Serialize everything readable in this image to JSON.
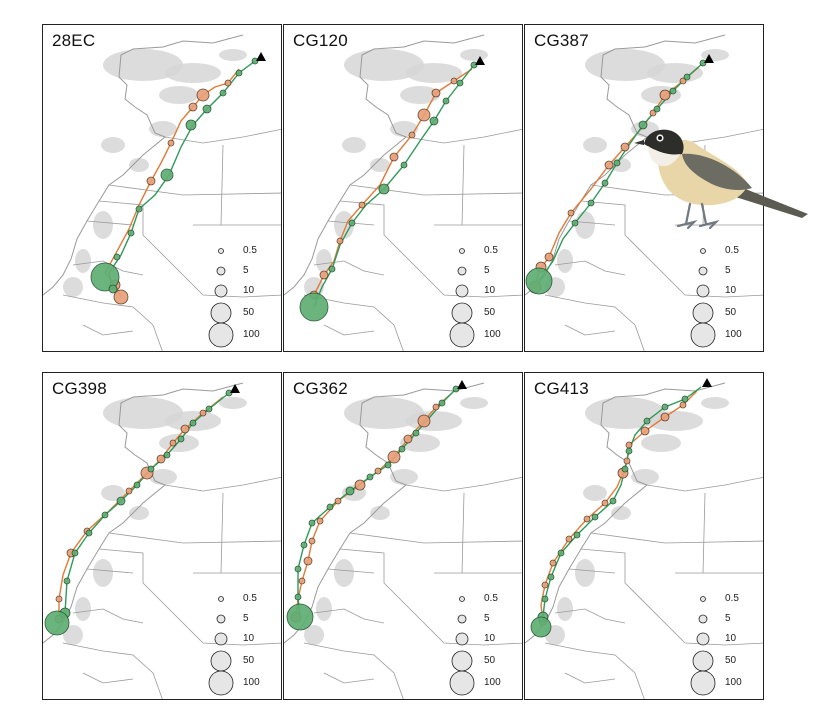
{
  "colors": {
    "spring_route": "#e07b39",
    "autumn_route": "#2e9a5a",
    "spring_fill": "#e8a07a",
    "autumn_fill": "#5fae74",
    "border": "#9a9a9a",
    "terrain": "#d6d6d6",
    "legend_fill": "#e6e6e6",
    "breeding_marker": "#000000"
  },
  "legend": {
    "labels": [
      "0.5",
      "5",
      "10",
      "50",
      "100"
    ]
  },
  "panels": [
    {
      "id": "28EC",
      "orange": [
        [
          196,
          44
        ],
        [
          185,
          58
        ],
        [
          172,
          62
        ],
        [
          160,
          70
        ],
        [
          150,
          82
        ],
        [
          138,
          96
        ],
        [
          128,
          118
        ],
        [
          118,
          138
        ],
        [
          108,
          156
        ],
        [
          96,
          180
        ],
        [
          86,
          204
        ],
        [
          72,
          230
        ],
        [
          62,
          248
        ],
        [
          72,
          260
        ],
        [
          78,
          272
        ]
      ],
      "green": [
        [
          212,
          36
        ],
        [
          196,
          48
        ],
        [
          180,
          68
        ],
        [
          164,
          84
        ],
        [
          150,
          100
        ],
        [
          138,
          122
        ],
        [
          126,
          150
        ],
        [
          112,
          170
        ],
        [
          96,
          184
        ],
        [
          88,
          208
        ],
        [
          78,
          230
        ],
        [
          66,
          248
        ],
        [
          70,
          264
        ]
      ],
      "orange_circles": [
        [
          185,
          58,
          3
        ],
        [
          160,
          70,
          6
        ],
        [
          150,
          82,
          4
        ],
        [
          128,
          118,
          3
        ],
        [
          108,
          156,
          4
        ],
        [
          72,
          260,
          5
        ],
        [
          78,
          272,
          7
        ]
      ],
      "green_circles": [
        [
          212,
          36,
          3
        ],
        [
          196,
          48,
          3
        ],
        [
          180,
          68,
          3
        ],
        [
          164,
          84,
          4
        ],
        [
          148,
          100,
          5
        ],
        [
          124,
          150,
          6
        ],
        [
          96,
          184,
          3
        ],
        [
          88,
          208,
          3
        ],
        [
          74,
          232,
          3
        ],
        [
          62,
          252,
          14
        ],
        [
          70,
          264,
          4
        ]
      ]
    },
    {
      "id": "CG120",
      "orange": [
        [
          188,
          44
        ],
        [
          170,
          56
        ],
        [
          152,
          68
        ],
        [
          140,
          90
        ],
        [
          128,
          110
        ],
        [
          110,
          132
        ],
        [
          96,
          160
        ],
        [
          78,
          180
        ],
        [
          64,
          196
        ],
        [
          56,
          216
        ],
        [
          50,
          236
        ],
        [
          40,
          250
        ],
        [
          30,
          270
        ]
      ],
      "green": [
        [
          190,
          40
        ],
        [
          176,
          58
        ],
        [
          162,
          76
        ],
        [
          150,
          96
        ],
        [
          136,
          116
        ],
        [
          120,
          140
        ],
        [
          100,
          164
        ],
        [
          82,
          180
        ],
        [
          68,
          198
        ],
        [
          56,
          220
        ],
        [
          48,
          244
        ],
        [
          38,
          262
        ],
        [
          30,
          282
        ]
      ],
      "orange_circles": [
        [
          170,
          56,
          3
        ],
        [
          152,
          68,
          4
        ],
        [
          140,
          90,
          6
        ],
        [
          128,
          110,
          3
        ],
        [
          110,
          132,
          4
        ],
        [
          78,
          180,
          3
        ],
        [
          56,
          216,
          3
        ],
        [
          40,
          250,
          4
        ],
        [
          30,
          270,
          4
        ]
      ],
      "green_circles": [
        [
          190,
          40,
          3
        ],
        [
          176,
          58,
          3
        ],
        [
          162,
          76,
          3
        ],
        [
          150,
          96,
          4
        ],
        [
          120,
          140,
          3
        ],
        [
          100,
          164,
          5
        ],
        [
          68,
          198,
          3
        ],
        [
          48,
          244,
          3
        ],
        [
          30,
          282,
          14
        ]
      ]
    },
    {
      "id": "CG387",
      "orange": [
        [
          174,
          42
        ],
        [
          158,
          56
        ],
        [
          140,
          70
        ],
        [
          128,
          88
        ],
        [
          116,
          104
        ],
        [
          100,
          122
        ],
        [
          84,
          140
        ],
        [
          66,
          164
        ],
        [
          46,
          188
        ],
        [
          34,
          208
        ],
        [
          24,
          232
        ],
        [
          14,
          246
        ],
        [
          10,
          262
        ]
      ],
      "green": [
        [
          178,
          38
        ],
        [
          162,
          52
        ],
        [
          148,
          66
        ],
        [
          132,
          84
        ],
        [
          118,
          100
        ],
        [
          104,
          120
        ],
        [
          92,
          138
        ],
        [
          80,
          158
        ],
        [
          66,
          178
        ],
        [
          50,
          198
        ],
        [
          38,
          214
        ],
        [
          28,
          236
        ],
        [
          14,
          256
        ]
      ],
      "orange_circles": [
        [
          158,
          56,
          3
        ],
        [
          140,
          70,
          5
        ],
        [
          128,
          88,
          3
        ],
        [
          100,
          122,
          4
        ],
        [
          84,
          140,
          4
        ],
        [
          46,
          188,
          3
        ],
        [
          24,
          232,
          4
        ],
        [
          16,
          242,
          5
        ],
        [
          10,
          262,
          6
        ]
      ],
      "green_circles": [
        [
          178,
          38,
          3
        ],
        [
          162,
          52,
          3
        ],
        [
          148,
          66,
          3
        ],
        [
          132,
          84,
          3
        ],
        [
          118,
          100,
          4
        ],
        [
          92,
          138,
          3
        ],
        [
          80,
          158,
          3
        ],
        [
          66,
          178,
          3
        ],
        [
          50,
          198,
          3
        ],
        [
          14,
          256,
          13
        ]
      ]
    },
    {
      "id": "CG398",
      "orange": [
        [
          180,
          24
        ],
        [
          160,
          40
        ],
        [
          142,
          56
        ],
        [
          130,
          70
        ],
        [
          118,
          86
        ],
        [
          104,
          100
        ],
        [
          86,
          118
        ],
        [
          66,
          138
        ],
        [
          44,
          158
        ],
        [
          28,
          180
        ],
        [
          20,
          202
        ],
        [
          16,
          226
        ],
        [
          16,
          246
        ]
      ],
      "green": [
        [
          186,
          20
        ],
        [
          166,
          36
        ],
        [
          150,
          50
        ],
        [
          138,
          66
        ],
        [
          124,
          82
        ],
        [
          108,
          96
        ],
        [
          94,
          112
        ],
        [
          78,
          128
        ],
        [
          62,
          142
        ],
        [
          46,
          160
        ],
        [
          32,
          180
        ],
        [
          24,
          208
        ],
        [
          22,
          240
        ],
        [
          14,
          250
        ]
      ],
      "orange_circles": [
        [
          160,
          40,
          3
        ],
        [
          142,
          56,
          4
        ],
        [
          130,
          70,
          3
        ],
        [
          118,
          86,
          4
        ],
        [
          104,
          100,
          6
        ],
        [
          86,
          118,
          3
        ],
        [
          44,
          158,
          3
        ],
        [
          28,
          180,
          4
        ],
        [
          16,
          226,
          3
        ],
        [
          16,
          246,
          4
        ]
      ],
      "green_circles": [
        [
          186,
          20,
          3
        ],
        [
          166,
          36,
          3
        ],
        [
          150,
          50,
          3
        ],
        [
          138,
          66,
          3
        ],
        [
          124,
          82,
          3
        ],
        [
          108,
          96,
          3
        ],
        [
          94,
          112,
          3
        ],
        [
          78,
          128,
          4
        ],
        [
          62,
          142,
          3
        ],
        [
          46,
          160,
          3
        ],
        [
          32,
          180,
          3
        ],
        [
          24,
          208,
          3
        ],
        [
          22,
          240,
          5
        ],
        [
          14,
          250,
          12
        ]
      ]
    },
    {
      "id": "CG362",
      "orange": [
        [
          168,
          20
        ],
        [
          152,
          34
        ],
        [
          140,
          48
        ],
        [
          124,
          66
        ],
        [
          110,
          84
        ],
        [
          94,
          98
        ],
        [
          76,
          112
        ],
        [
          54,
          128
        ],
        [
          36,
          148
        ],
        [
          28,
          168
        ],
        [
          24,
          188
        ],
        [
          18,
          208
        ],
        [
          14,
          226
        ],
        [
          12,
          244
        ]
      ],
      "green": [
        [
          172,
          16
        ],
        [
          158,
          30
        ],
        [
          146,
          44
        ],
        [
          132,
          60
        ],
        [
          118,
          76
        ],
        [
          104,
          92
        ],
        [
          86,
          104
        ],
        [
          66,
          118
        ],
        [
          46,
          134
        ],
        [
          28,
          150
        ],
        [
          20,
          172
        ],
        [
          14,
          196
        ],
        [
          14,
          224
        ],
        [
          16,
          244
        ]
      ],
      "orange_circles": [
        [
          152,
          34,
          3
        ],
        [
          140,
          48,
          6
        ],
        [
          124,
          66,
          4
        ],
        [
          110,
          84,
          6
        ],
        [
          94,
          98,
          3
        ],
        [
          76,
          112,
          5
        ],
        [
          54,
          128,
          3
        ],
        [
          36,
          148,
          3
        ],
        [
          28,
          168,
          3
        ],
        [
          24,
          188,
          4
        ],
        [
          18,
          208,
          3
        ],
        [
          12,
          244,
          5
        ]
      ],
      "green_circles": [
        [
          172,
          16,
          3
        ],
        [
          158,
          30,
          3
        ],
        [
          132,
          60,
          3
        ],
        [
          118,
          76,
          3
        ],
        [
          104,
          92,
          3
        ],
        [
          86,
          104,
          3
        ],
        [
          66,
          118,
          4
        ],
        [
          46,
          134,
          3
        ],
        [
          28,
          150,
          3
        ],
        [
          20,
          172,
          3
        ],
        [
          14,
          196,
          3
        ],
        [
          14,
          224,
          3
        ],
        [
          16,
          244,
          13
        ]
      ]
    },
    {
      "id": "CG413",
      "orange": [
        [
          172,
          18
        ],
        [
          158,
          32
        ],
        [
          140,
          44
        ],
        [
          120,
          58
        ],
        [
          104,
          72
        ],
        [
          102,
          88
        ],
        [
          98,
          100
        ],
        [
          92,
          114
        ],
        [
          80,
          130
        ],
        [
          62,
          146
        ],
        [
          44,
          166
        ],
        [
          28,
          190
        ],
        [
          20,
          212
        ],
        [
          16,
          232
        ],
        [
          18,
          248
        ]
      ],
      "green": [
        [
          176,
          14
        ],
        [
          160,
          26
        ],
        [
          140,
          34
        ],
        [
          122,
          48
        ],
        [
          110,
          62
        ],
        [
          104,
          78
        ],
        [
          100,
          96
        ],
        [
          96,
          112
        ],
        [
          88,
          128
        ],
        [
          70,
          144
        ],
        [
          52,
          162
        ],
        [
          36,
          180
        ],
        [
          26,
          204
        ],
        [
          20,
          226
        ],
        [
          18,
          244
        ],
        [
          16,
          254
        ]
      ],
      "orange_circles": [
        [
          158,
          32,
          3
        ],
        [
          140,
          44,
          4
        ],
        [
          120,
          58,
          4
        ],
        [
          104,
          72,
          3
        ],
        [
          102,
          88,
          3
        ],
        [
          98,
          100,
          5
        ],
        [
          80,
          130,
          3
        ],
        [
          62,
          146,
          3
        ],
        [
          44,
          166,
          3
        ],
        [
          28,
          190,
          3
        ],
        [
          20,
          212,
          3
        ],
        [
          18,
          248,
          4
        ]
      ],
      "green_circles": [
        [
          160,
          26,
          3
        ],
        [
          140,
          34,
          3
        ],
        [
          122,
          48,
          3
        ],
        [
          104,
          78,
          3
        ],
        [
          100,
          96,
          3
        ],
        [
          88,
          128,
          3
        ],
        [
          70,
          144,
          3
        ],
        [
          52,
          162,
          3
        ],
        [
          36,
          180,
          3
        ],
        [
          26,
          204,
          3
        ],
        [
          20,
          226,
          3
        ],
        [
          18,
          244,
          5
        ],
        [
          16,
          254,
          10
        ]
      ]
    }
  ]
}
